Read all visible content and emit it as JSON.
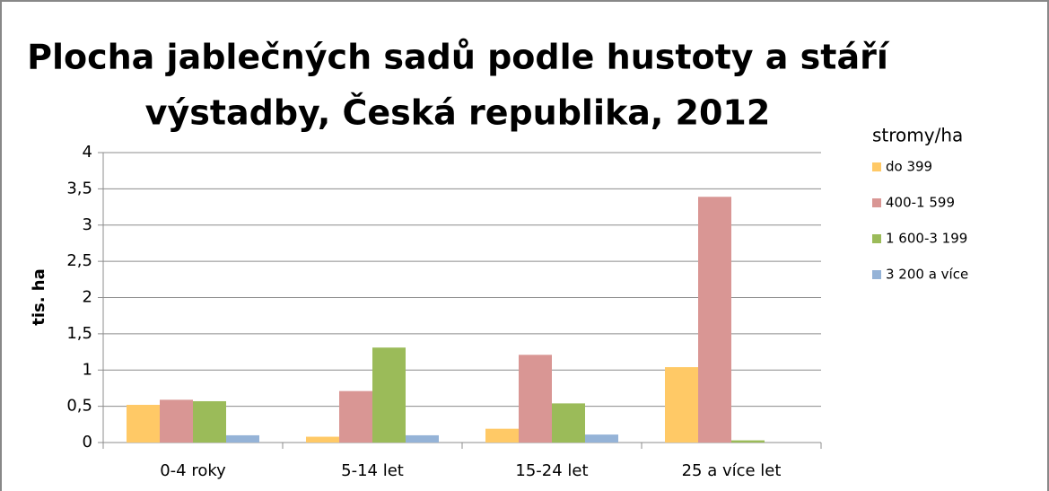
{
  "chart_data": {
    "type": "bar",
    "title": [
      "Plocha jablečných sadů podle hustoty a stáří",
      "výstadby, Česká republika, 2012"
    ],
    "y_label": "tis. ha",
    "legend_title": "stromy/ha",
    "categories": [
      "0-4 roky",
      "5-14 let",
      "15-24 let",
      "25 a více let"
    ],
    "series": [
      {
        "name": "do 399",
        "color": "#ffc966",
        "values": [
          0.52,
          0.08,
          0.19,
          1.04
        ]
      },
      {
        "name": "400-1 599",
        "color": "#d99694",
        "values": [
          0.59,
          0.71,
          1.21,
          3.39
        ]
      },
      {
        "name": "1 600-3 199",
        "color": "#9bbb59",
        "values": [
          0.57,
          1.31,
          0.54,
          0.03
        ]
      },
      {
        "name": "3 200 a více",
        "color": "#95b3d7",
        "values": [
          0.1,
          0.1,
          0.11,
          0
        ]
      }
    ],
    "ylim": [
      0,
      4
    ],
    "yticks": [
      0,
      {
        "value": 0.5,
        "label": "0,5"
      },
      1,
      {
        "value": 1.5,
        "label": "1,5"
      },
      2,
      {
        "value": 2.5,
        "label": "2,5"
      },
      3,
      {
        "value": 3.5,
        "label": "3,5"
      },
      4
    ],
    "grid": true,
    "legend": "right"
  }
}
